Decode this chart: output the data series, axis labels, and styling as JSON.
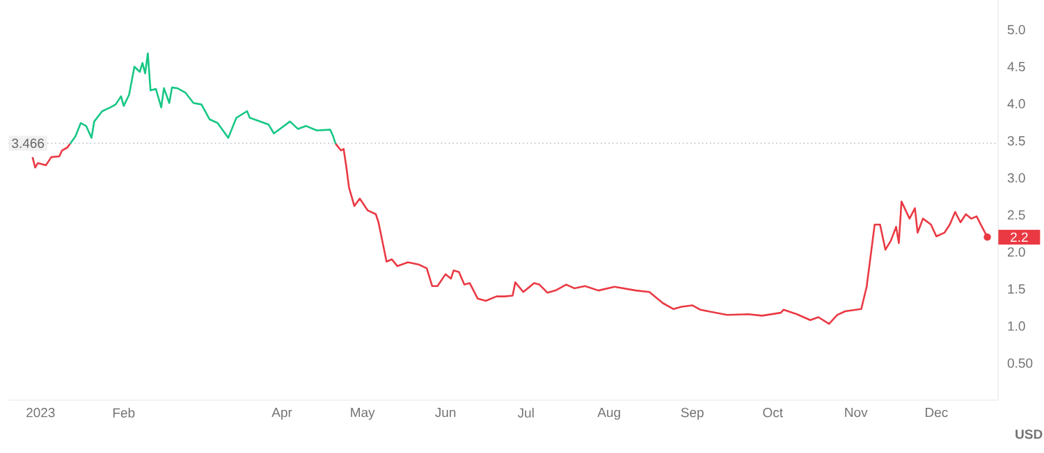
{
  "chart_data": {
    "type": "line",
    "ylabel": "USD",
    "xlim": [
      "2022-12-20",
      "2023-12-24"
    ],
    "xticks": [
      {
        "value": "2023-01-01",
        "label": "2023"
      },
      {
        "value": "2023-02-01",
        "label": "Feb"
      },
      {
        "value": "2023-04-01",
        "label": "Apr"
      },
      {
        "value": "2023-05-01",
        "label": "May"
      },
      {
        "value": "2023-06-01",
        "label": "Jun"
      },
      {
        "value": "2023-07-01",
        "label": "Jul"
      },
      {
        "value": "2023-08-01",
        "label": "Aug"
      },
      {
        "value": "2023-09-01",
        "label": "Sep"
      },
      {
        "value": "2023-10-01",
        "label": "Oct"
      },
      {
        "value": "2023-11-01",
        "label": "Nov"
      },
      {
        "value": "2023-12-01",
        "label": "Dec"
      }
    ],
    "ylim": [
      0,
      5.4
    ],
    "yticks": [
      {
        "value": 0.5,
        "label": "0.50"
      },
      {
        "value": 1.0,
        "label": "1.0"
      },
      {
        "value": 1.5,
        "label": "1.5"
      },
      {
        "value": 2.0,
        "label": "2.0"
      },
      {
        "value": 2.5,
        "label": "2.5"
      },
      {
        "value": 3.0,
        "label": "3.0"
      },
      {
        "value": 3.5,
        "label": "3.5"
      },
      {
        "value": 4.0,
        "label": "4.0"
      },
      {
        "value": 4.5,
        "label": "4.5"
      },
      {
        "value": 5.0,
        "label": "5.0"
      }
    ],
    "grid": false,
    "marker": "none",
    "line_style": "solid",
    "ref_lines": [
      {
        "axis": "y",
        "value": 3.466,
        "label": "3.466",
        "color": "#b8bcc6",
        "line_style": "dotted"
      }
    ],
    "annotations": [
      {
        "text": "2.2",
        "x": "2023-12-20",
        "y": 2.2
      }
    ],
    "series": [
      {
        "color": "#ea3943",
        "x": [
          "2022-12-29",
          "2022-12-30",
          "2022-12-31",
          "2023-01-03",
          "2023-01-05",
          "2023-01-08",
          "2023-01-09",
          "2023-01-11",
          "2023-01-12"
        ],
        "values": [
          3.28,
          3.14,
          3.2,
          3.17,
          3.28,
          3.29,
          3.37,
          3.41,
          3.46
        ]
      },
      {
        "color": "#16c784",
        "x": [
          "2023-01-12",
          "2023-01-14",
          "2023-01-16",
          "2023-01-18",
          "2023-01-20",
          "2023-01-21",
          "2023-01-24",
          "2023-01-27",
          "2023-01-29",
          "2023-01-31",
          "2023-02-01",
          "2023-02-03",
          "2023-02-05",
          "2023-02-07",
          "2023-02-08",
          "2023-02-09",
          "2023-02-10",
          "2023-02-11",
          "2023-02-13",
          "2023-02-15",
          "2023-02-16",
          "2023-02-18",
          "2023-02-19",
          "2023-02-21",
          "2023-02-24",
          "2023-02-27",
          "2023-03-02",
          "2023-03-05",
          "2023-03-08",
          "2023-03-12",
          "2023-03-15",
          "2023-03-19",
          "2023-03-20",
          "2023-03-24",
          "2023-03-27",
          "2023-03-29",
          "2023-04-04",
          "2023-04-07",
          "2023-04-10",
          "2023-04-14",
          "2023-04-19",
          "2023-04-20",
          "2023-04-21"
        ],
        "values": [
          3.46,
          3.56,
          3.74,
          3.7,
          3.54,
          3.76,
          3.9,
          3.95,
          3.99,
          4.1,
          3.97,
          4.12,
          4.5,
          4.43,
          4.55,
          4.41,
          4.68,
          4.18,
          4.2,
          3.95,
          4.21,
          4.01,
          4.22,
          4.21,
          4.15,
          4.01,
          3.99,
          3.79,
          3.74,
          3.54,
          3.81,
          3.9,
          3.81,
          3.76,
          3.72,
          3.6,
          3.76,
          3.66,
          3.7,
          3.64,
          3.65,
          3.57,
          3.46
        ]
      },
      {
        "color": "#ea3943",
        "x": [
          "2023-04-21",
          "2023-04-23",
          "2023-04-24",
          "2023-04-25",
          "2023-04-26",
          "2023-04-28",
          "2023-04-30",
          "2023-05-03",
          "2023-05-06",
          "2023-05-07",
          "2023-05-10",
          "2023-05-12",
          "2023-05-14",
          "2023-05-18",
          "2023-05-22",
          "2023-05-25",
          "2023-05-27",
          "2023-05-29",
          "2023-06-01",
          "2023-06-03",
          "2023-06-04",
          "2023-06-06",
          "2023-06-08",
          "2023-06-10",
          "2023-06-13",
          "2023-06-16",
          "2023-06-20",
          "2023-06-23",
          "2023-06-26",
          "2023-06-27",
          "2023-06-30",
          "2023-07-04",
          "2023-07-06",
          "2023-07-09",
          "2023-07-12",
          "2023-07-16",
          "2023-07-19",
          "2023-07-23",
          "2023-07-28",
          "2023-08-03",
          "2023-08-11",
          "2023-08-16",
          "2023-08-21",
          "2023-08-25",
          "2023-08-28",
          "2023-09-01",
          "2023-09-04",
          "2023-09-14",
          "2023-09-22",
          "2023-09-27",
          "2023-10-04",
          "2023-10-05",
          "2023-10-10",
          "2023-10-15",
          "2023-10-18",
          "2023-10-22",
          "2023-10-25",
          "2023-10-28",
          "2023-11-03",
          "2023-11-05",
          "2023-11-08",
          "2023-11-10",
          "2023-11-12",
          "2023-11-14",
          "2023-11-16",
          "2023-11-17",
          "2023-11-18",
          "2023-11-21",
          "2023-11-23",
          "2023-11-24",
          "2023-11-26",
          "2023-11-29",
          "2023-12-01",
          "2023-12-04",
          "2023-12-06",
          "2023-12-08",
          "2023-12-10",
          "2023-12-12",
          "2023-12-14",
          "2023-12-16",
          "2023-12-18",
          "2023-12-20"
        ],
        "values": [
          3.46,
          3.37,
          3.39,
          3.15,
          2.87,
          2.62,
          2.72,
          2.56,
          2.51,
          2.4,
          1.87,
          1.9,
          1.81,
          1.86,
          1.83,
          1.78,
          1.54,
          1.54,
          1.7,
          1.64,
          1.75,
          1.73,
          1.56,
          1.58,
          1.37,
          1.34,
          1.4,
          1.4,
          1.41,
          1.59,
          1.46,
          1.58,
          1.56,
          1.45,
          1.48,
          1.56,
          1.51,
          1.54,
          1.48,
          1.53,
          1.48,
          1.46,
          1.31,
          1.23,
          1.26,
          1.28,
          1.22,
          1.15,
          1.16,
          1.14,
          1.18,
          1.22,
          1.16,
          1.08,
          1.12,
          1.03,
          1.15,
          1.2,
          1.23,
          1.53,
          2.37,
          2.37,
          2.03,
          2.15,
          2.34,
          2.12,
          2.68,
          2.45,
          2.59,
          2.26,
          2.45,
          2.37,
          2.21,
          2.26,
          2.37,
          2.54,
          2.4,
          2.51,
          2.45,
          2.48,
          2.34,
          2.2
        ]
      }
    ]
  }
}
